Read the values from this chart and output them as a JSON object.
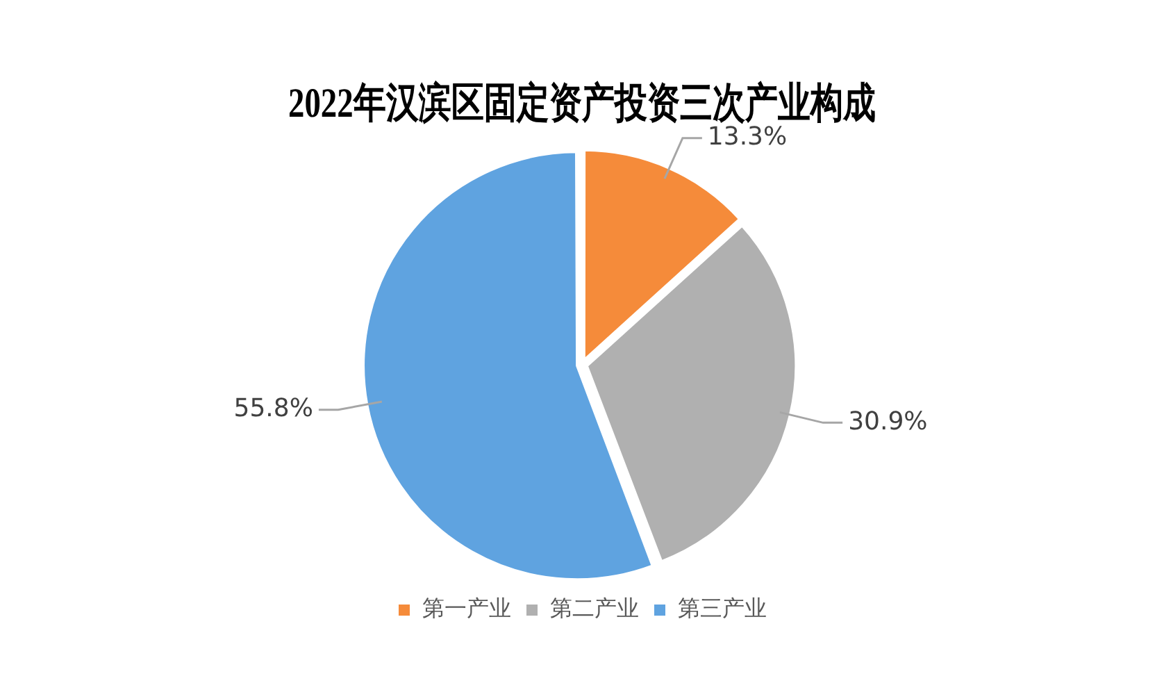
{
  "chart_data": {
    "type": "pie",
    "title": "2022年汉滨区固定资产投资三次产业构成",
    "categories": [
      "第一产业",
      "第二产业",
      "第三产业"
    ],
    "values": [
      13.3,
      30.9,
      55.8
    ],
    "colors": [
      "#f58b3a",
      "#b0b0b0",
      "#5fa3e0"
    ],
    "value_labels": [
      "13.3%",
      "30.9%",
      "55.8%"
    ],
    "legend": "bottom"
  }
}
